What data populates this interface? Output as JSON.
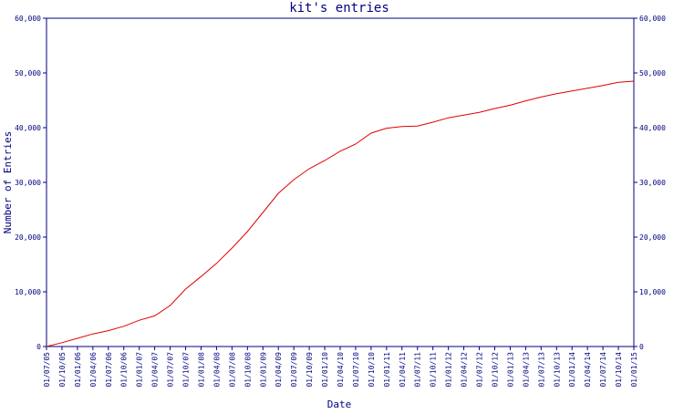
{
  "chart_data": {
    "type": "line",
    "title": "kit's entries",
    "xlabel": "Date",
    "ylabel": "Number of Entries",
    "ylim": [
      0,
      60000
    ],
    "grid": false,
    "y_ticks": [
      "0",
      "10,000",
      "20,000",
      "30,000",
      "40,000",
      "50,000",
      "60,000"
    ],
    "y_tick_values": [
      0,
      10000,
      20000,
      30000,
      40000,
      50000,
      60000
    ],
    "x_tick_labels": [
      "01/07/05",
      "01/10/05",
      "01/01/06",
      "01/04/06",
      "01/07/06",
      "01/10/06",
      "01/01/07",
      "01/04/07",
      "01/07/07",
      "01/10/07",
      "01/01/08",
      "01/04/08",
      "01/07/08",
      "01/10/08",
      "01/01/09",
      "01/04/09",
      "01/07/09",
      "01/10/09",
      "01/01/10",
      "01/04/10",
      "01/07/10",
      "01/10/10",
      "01/01/11",
      "01/04/11",
      "01/07/11",
      "01/10/11",
      "01/01/12",
      "01/04/12",
      "01/07/12",
      "01/10/12",
      "01/01/13",
      "01/04/13",
      "01/07/13",
      "01/10/13",
      "01/01/14",
      "01/04/14",
      "01/07/14",
      "01/10/14",
      "01/01/15"
    ],
    "line_color": "#e00000",
    "axis_color": "#000080",
    "series": [
      {
        "x": [
          "01/07/05",
          "01/10/05",
          "01/01/06",
          "01/04/06",
          "01/07/06",
          "01/10/06",
          "01/01/07",
          "01/04/07",
          "01/07/07",
          "01/10/07",
          "01/01/08",
          "01/04/08",
          "01/07/08",
          "01/10/08",
          "01/01/09",
          "01/04/09",
          "01/07/09",
          "01/10/09",
          "01/01/10",
          "01/04/10",
          "01/07/10",
          "01/10/10",
          "01/01/11",
          "01/04/11",
          "01/07/11",
          "01/10/11",
          "01/01/12",
          "01/04/12",
          "01/07/12",
          "01/10/12",
          "01/01/13",
          "01/04/13",
          "01/07/13",
          "01/10/13",
          "01/01/14",
          "01/04/14",
          "01/07/14",
          "01/10/14",
          "01/01/15"
        ],
        "y": [
          0,
          700,
          1500,
          2300,
          2900,
          3700,
          4800,
          5600,
          7500,
          10500,
          12800,
          15200,
          18000,
          21000,
          24500,
          28000,
          30500,
          32500,
          34000,
          35700,
          37000,
          39000,
          39900,
          40200,
          40300,
          41000,
          41800,
          42300,
          42800,
          43500,
          44100,
          44900,
          45600,
          46200,
          46700,
          47200,
          47700,
          48300,
          48500
        ]
      }
    ]
  }
}
